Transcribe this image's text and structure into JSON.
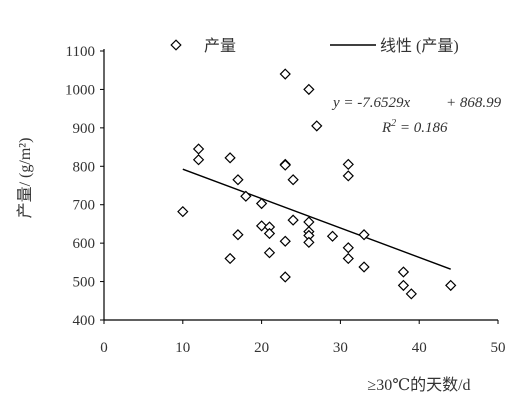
{
  "chart_data": {
    "type": "scatter",
    "title": "",
    "xlabel": "≥30℃的天数/d",
    "ylabel": "产量/ (g/m²)",
    "xlim": [
      0,
      50
    ],
    "ylim": [
      400,
      1100
    ],
    "x_ticks": [
      "0",
      "10",
      "20",
      "30",
      "40",
      "50"
    ],
    "y_ticks": [
      "400",
      "500",
      "600",
      "700",
      "800",
      "900",
      "1000",
      "1100"
    ],
    "grid": false,
    "legend_position": "top",
    "series": [
      {
        "name": "产量",
        "marker": "diamond-open",
        "color": "#000000",
        "points": [
          [
            10,
            682
          ],
          [
            12,
            845
          ],
          [
            12,
            817
          ],
          [
            16,
            822
          ],
          [
            16,
            560
          ],
          [
            17,
            765
          ],
          [
            17,
            622
          ],
          [
            18,
            722
          ],
          [
            20,
            703
          ],
          [
            20,
            645
          ],
          [
            21,
            642
          ],
          [
            21,
            625
          ],
          [
            21,
            575
          ],
          [
            23,
            1040
          ],
          [
            23,
            805
          ],
          [
            23,
            803
          ],
          [
            23,
            605
          ],
          [
            23,
            512
          ],
          [
            24,
            765
          ],
          [
            24,
            660
          ],
          [
            26,
            1000
          ],
          [
            26,
            655
          ],
          [
            26,
            630
          ],
          [
            26,
            620
          ],
          [
            26,
            602
          ],
          [
            27,
            905
          ],
          [
            29,
            618
          ],
          [
            31,
            805
          ],
          [
            31,
            775
          ],
          [
            31,
            588
          ],
          [
            31,
            560
          ],
          [
            33,
            622
          ],
          [
            33,
            538
          ],
          [
            38,
            525
          ],
          [
            38,
            490
          ],
          [
            39,
            468
          ],
          [
            44,
            490
          ]
        ]
      }
    ],
    "trendline": {
      "name": "线性 (产量)",
      "color": "#000000",
      "slope": -7.6529,
      "intercept": 868.99,
      "x_range": [
        10,
        44
      ],
      "equation_lhs": "y = -7.6529x",
      "equation_rhs": "+ 868.99",
      "r2_lhs": "R",
      "r2_sup": "2",
      "r2_value": " = 0.186"
    }
  }
}
